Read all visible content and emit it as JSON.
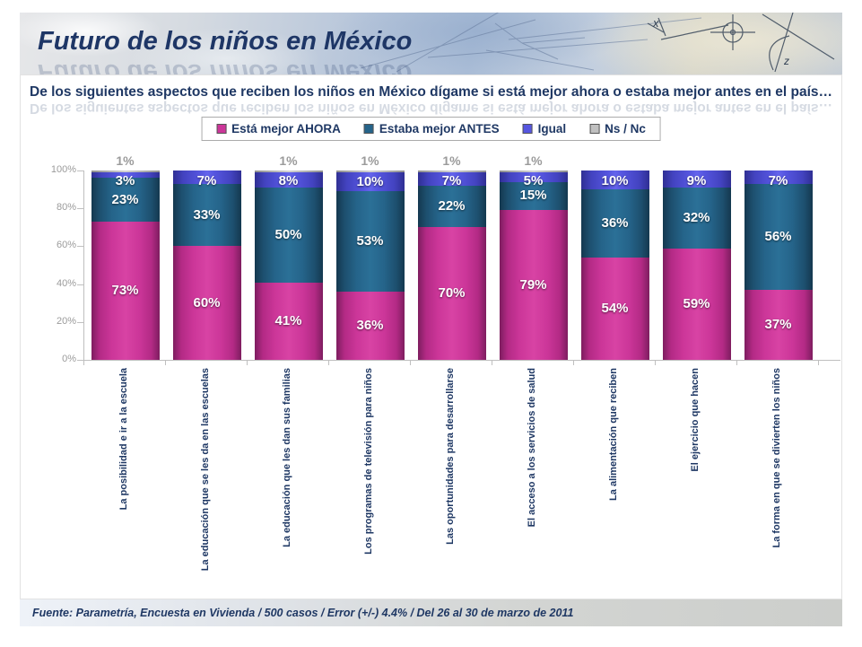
{
  "header": {
    "title": "Futuro de los niños en México"
  },
  "question": "De los siguientes aspectos que reciben los niños en México dígame si está mejor ahora o estaba mejor antes en el país…",
  "footer": {
    "source": "Fuente: Parametría, Encuesta en Vivienda / 500 casos / Error (+/-) 4.4% / Del 26 al 30 de marzo de 2011"
  },
  "colors": {
    "ahora": "#CC3699",
    "antes": "#25648A",
    "igual": "#5656E0",
    "nsnc": "#C0C0C0",
    "title_text": "#1F3864",
    "axis_text": "#9B9B9B"
  },
  "chart_data": {
    "type": "bar",
    "stacked": true,
    "grid": false,
    "legend_position": "top",
    "ylim": [
      0,
      100
    ],
    "ytick_labels": [
      "100%",
      "80%",
      "60%",
      "40%",
      "20%",
      "0%"
    ],
    "ytick_values": [
      100,
      80,
      60,
      40,
      20,
      0
    ],
    "categories": [
      "La posibilidad e ir a la escuela",
      "La educación que se les da en las escuelas",
      "La educación que les dan sus familias",
      "Los programas de televisión para niños",
      "Las oportunidades para desarrollarse",
      "El acceso a los servicios de salud",
      "La alimentación que reciben",
      "El ejercicio que hacen",
      "La forma en que se divierten los niños"
    ],
    "series": [
      {
        "name": "Está mejor AHORA",
        "color_key": "ahora",
        "values": [
          73,
          60,
          41,
          36,
          70,
          79,
          54,
          59,
          37
        ]
      },
      {
        "name": "Estaba mejor ANTES",
        "color_key": "antes",
        "values": [
          23,
          33,
          50,
          53,
          22,
          15,
          36,
          32,
          56
        ]
      },
      {
        "name": "Igual",
        "color_key": "igual",
        "values": [
          3,
          7,
          8,
          10,
          7,
          5,
          10,
          9,
          7
        ]
      },
      {
        "name": "Ns / Nc",
        "color_key": "nsnc",
        "values": [
          1,
          0,
          1,
          1,
          1,
          1,
          0,
          0,
          0
        ]
      }
    ]
  }
}
